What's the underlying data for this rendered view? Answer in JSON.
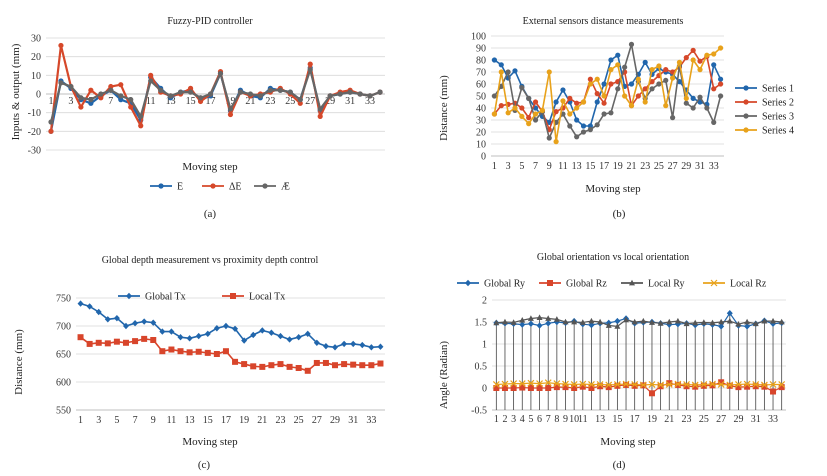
{
  "colors": {
    "blue": "#2166ac",
    "orange": "#d6482a",
    "gray": "#666666",
    "gold": "#e8a21b",
    "red": "#d8452b"
  },
  "panels": [
    {
      "id": "a",
      "caption": "(a)",
      "chart_data": {
        "type": "line",
        "title": "Fuzzy-PID controller",
        "xlabel": "Moving step",
        "ylabel": "Inputs & output (mm)",
        "ylim": [
          -30,
          30
        ],
        "yticks": [
          30,
          20,
          10,
          0,
          -10,
          -20,
          -30
        ],
        "xtick_labels": [
          "1",
          "3",
          "5",
          "7",
          "9",
          "11",
          "13",
          "15",
          "17",
          "19",
          "21",
          "23",
          "25",
          "27",
          "29",
          "31",
          "33"
        ],
        "x": [
          1,
          2,
          3,
          4,
          5,
          6,
          7,
          8,
          9,
          10,
          11,
          12,
          13,
          14,
          15,
          16,
          17,
          18,
          19,
          20,
          21,
          22,
          23,
          24,
          25,
          26,
          27,
          28,
          29,
          30,
          31,
          32,
          33,
          34
        ],
        "grid": true,
        "legend": "bottom",
        "series": [
          {
            "name": "E",
            "color": "#2166ac",
            "values": [
              -20,
              7,
              3,
              -3,
              -5,
              -1,
              2,
              -3,
              -5,
              -14,
              9,
              3,
              -2,
              1,
              2,
              -3,
              -1,
              11,
              -9,
              2,
              -1,
              -2,
              3,
              2,
              1,
              -3,
              14,
              -9,
              -1,
              0,
              1,
              0,
              -1,
              1
            ]
          },
          {
            "name": "ΔE",
            "color": "#d6482a",
            "values": [
              -20,
              26,
              4,
              -7,
              2,
              -2,
              4,
              5,
              -7,
              -17,
              10,
              1,
              -1,
              0,
              3,
              -4,
              0,
              12,
              -11,
              1,
              -1,
              0,
              1,
              3,
              0,
              -5,
              16,
              -12,
              -1,
              1,
              2,
              0,
              -1,
              1
            ]
          },
          {
            "name": "Æ",
            "color": "#666666",
            "values": [
              -15,
              6,
              4,
              -2,
              -3,
              0,
              2,
              -1,
              -3,
              -12,
              7,
              2,
              -1,
              1,
              1,
              -2,
              0,
              11,
              -8,
              1,
              0,
              -1,
              2,
              2,
              1,
              -3,
              13,
              -8,
              -1,
              0,
              1,
              0,
              -1,
              1
            ]
          }
        ]
      }
    },
    {
      "id": "b",
      "caption": "(b)",
      "chart_data": {
        "type": "line",
        "title": "External sensors distance measurements",
        "xlabel": "Moving step",
        "ylabel": "Distance (mm)",
        "ylim": [
          0,
          100
        ],
        "yticks": [
          100,
          90,
          80,
          70,
          60,
          50,
          40,
          30,
          20,
          10,
          0
        ],
        "xtick_labels": [
          "1",
          "3",
          "5",
          "7",
          "9",
          "11",
          "13",
          "15",
          "17",
          "19",
          "21",
          "23",
          "25",
          "27",
          "29",
          "31",
          "33"
        ],
        "x": [
          1,
          2,
          3,
          4,
          5,
          6,
          7,
          8,
          9,
          10,
          11,
          12,
          13,
          14,
          15,
          16,
          17,
          18,
          19,
          20,
          21,
          22,
          23,
          24,
          25,
          26,
          27,
          28,
          29,
          30,
          31,
          32,
          33,
          34
        ],
        "grid": true,
        "legend": "right",
        "series": [
          {
            "name": "Series 1",
            "color": "#2166ac",
            "values": [
              80,
              76,
              65,
              71,
              58,
              48,
              40,
              33,
              28,
              45,
              55,
              45,
              30,
              25,
              25,
              45,
              60,
              80,
              84,
              58,
              60,
              68,
              78,
              68,
              73,
              70,
              68,
              62,
              55,
              48,
              45,
              43,
              76,
              64
            ]
          },
          {
            "name": "Series 2",
            "color": "#d6482a",
            "values": [
              35,
              42,
              43,
              44,
              40,
              32,
              45,
              37,
              22,
              37,
              40,
              48,
              44,
              45,
              64,
              52,
              44,
              60,
              62,
              70,
              42,
              50,
              56,
              62,
              67,
              72,
              70,
              74,
              82,
              88,
              79,
              83,
              56,
              60
            ]
          },
          {
            "name": "Series 3",
            "color": "#666666",
            "values": [
              50,
              58,
              70,
              38,
              57,
              48,
              30,
              37,
              15,
              28,
              35,
              25,
              16,
              20,
              22,
              26,
              35,
              36,
              56,
              74,
              93,
              62,
              48,
              56,
              60,
              63,
              32,
              75,
              44,
              40,
              49,
              40,
              28,
              50
            ]
          },
          {
            "name": "Series 4",
            "color": "#e8a21b",
            "values": [
              35,
              70,
              36,
              40,
              33,
              27,
              35,
              38,
              70,
              12,
              46,
              35,
              40,
              45,
              60,
              64,
              50,
              72,
              76,
              50,
              42,
              64,
              45,
              72,
              75,
              42,
              65,
              78,
              48,
              80,
              72,
              84,
              85,
              90
            ]
          }
        ]
      }
    },
    {
      "id": "c",
      "caption": "(c)",
      "chart_data": {
        "type": "line",
        "title": "Global depth measurement vs proximity depth control",
        "xlabel": "Moving step",
        "ylabel": "Distance (mm)",
        "ylim": [
          550,
          750
        ],
        "yticks": [
          750,
          700,
          650,
          600,
          550
        ],
        "xtick_labels": [
          "1",
          "3",
          "5",
          "7",
          "9",
          "11",
          "13",
          "15",
          "17",
          "19",
          "21",
          "23",
          "25",
          "27",
          "29",
          "31",
          "33"
        ],
        "x": [
          1,
          2,
          3,
          4,
          5,
          6,
          7,
          8,
          9,
          10,
          11,
          12,
          13,
          14,
          15,
          16,
          17,
          18,
          19,
          20,
          21,
          22,
          23,
          24,
          25,
          26,
          27,
          28,
          29,
          30,
          31,
          32,
          33,
          34
        ],
        "grid": true,
        "legend": "top",
        "series": [
          {
            "name": "Global Tx",
            "color": "#2166ac",
            "values": [
              740,
              735,
              725,
              712,
              714,
              700,
              705,
              708,
              706,
              690,
              690,
              680,
              678,
              682,
              686,
              696,
              700,
              695,
              674,
              684,
              692,
              688,
              682,
              676,
              680,
              686,
              670,
              664,
              662,
              668,
              668,
              666,
              662,
              663
            ]
          },
          {
            "name": "Local Tx",
            "color": "#d8452b",
            "values": [
              680,
              668,
              670,
              669,
              672,
              670,
              673,
              677,
              675,
              655,
              658,
              655,
              653,
              654,
              652,
              650,
              655,
              636,
              632,
              628,
              627,
              630,
              632,
              627,
              625,
              620,
              634,
              634,
              630,
              632,
              631,
              630,
              630,
              633
            ]
          }
        ]
      }
    },
    {
      "id": "d",
      "caption": "(d)",
      "chart_data": {
        "type": "line",
        "title": "Global orientation vs local orientation",
        "xlabel": "Moving step",
        "ylabel": "Angle (Radian)",
        "ylim": [
          -0.5,
          2
        ],
        "yticks": [
          2,
          1.5,
          1,
          0.5,
          0,
          -0.5
        ],
        "ytick_labels": [
          "2",
          "1.5",
          "1",
          "0.5",
          "0",
          "-0.5"
        ],
        "xtick_labels": [
          "1",
          "2",
          "3",
          "4",
          "5",
          "6",
          "7",
          "8",
          "9",
          "10",
          "11",
          "",
          "13",
          "",
          "15",
          "",
          "17",
          "",
          "19",
          "",
          "21",
          "",
          "23",
          "",
          "25",
          "",
          "27",
          "",
          "29",
          "",
          "31",
          "",
          "33",
          ""
        ],
        "x": [
          1,
          2,
          3,
          4,
          5,
          6,
          7,
          8,
          9,
          10,
          11,
          12,
          13,
          14,
          15,
          16,
          17,
          18,
          19,
          20,
          21,
          22,
          23,
          24,
          25,
          26,
          27,
          28,
          29,
          30,
          31,
          32,
          33,
          34
        ],
        "grid": true,
        "legend": "top",
        "series": [
          {
            "name": "Global Ry",
            "color": "#2166ac",
            "values": [
              1.48,
              1.47,
              1.46,
              1.44,
              1.46,
              1.42,
              1.47,
              1.5,
              1.48,
              1.52,
              1.45,
              1.43,
              1.47,
              1.48,
              1.52,
              1.58,
              1.47,
              1.49,
              1.5,
              1.47,
              1.44,
              1.45,
              1.47,
              1.43,
              1.46,
              1.44,
              1.4,
              1.7,
              1.42,
              1.4,
              1.46,
              1.53,
              1.46,
              1.48
            ]
          },
          {
            "name": "Global Rz",
            "color": "#d8452b",
            "values": [
              0,
              0,
              0,
              0.01,
              0,
              0,
              0,
              0.02,
              0.02,
              0,
              0.03,
              0,
              0.04,
              0.02,
              0.05,
              0.07,
              0.05,
              0.06,
              -0.12,
              0.04,
              0.11,
              0.07,
              0.04,
              0.03,
              0.05,
              0.06,
              0.13,
              0.05,
              0.02,
              0.03,
              0.04,
              0.03,
              -0.08,
              0.02
            ]
          },
          {
            "name": "Local Ry",
            "color": "#555555",
            "values": [
              1.48,
              1.5,
              1.49,
              1.54,
              1.58,
              1.6,
              1.58,
              1.56,
              1.5,
              1.5,
              1.49,
              1.52,
              1.5,
              1.42,
              1.4,
              1.55,
              1.5,
              1.52,
              1.49,
              1.47,
              1.5,
              1.52,
              1.46,
              1.48,
              1.49,
              1.48,
              1.5,
              1.52,
              1.45,
              1.5,
              1.46,
              1.52,
              1.52,
              1.5
            ]
          },
          {
            "name": "Local Rz",
            "color": "#e8a21b",
            "values": [
              0.08,
              0.09,
              0.1,
              0.1,
              0.11,
              0.1,
              0.12,
              0.1,
              0.09,
              0.08,
              0.09,
              0.08,
              0.08,
              0.07,
              0.08,
              0.09,
              0.08,
              0.07,
              0.08,
              0.07,
              0.08,
              0.09,
              0.08,
              0.07,
              0.08,
              0.09,
              0.08,
              0.07,
              0.08,
              0.09,
              0.08,
              0.07,
              0.08,
              0.08
            ]
          }
        ]
      }
    }
  ]
}
